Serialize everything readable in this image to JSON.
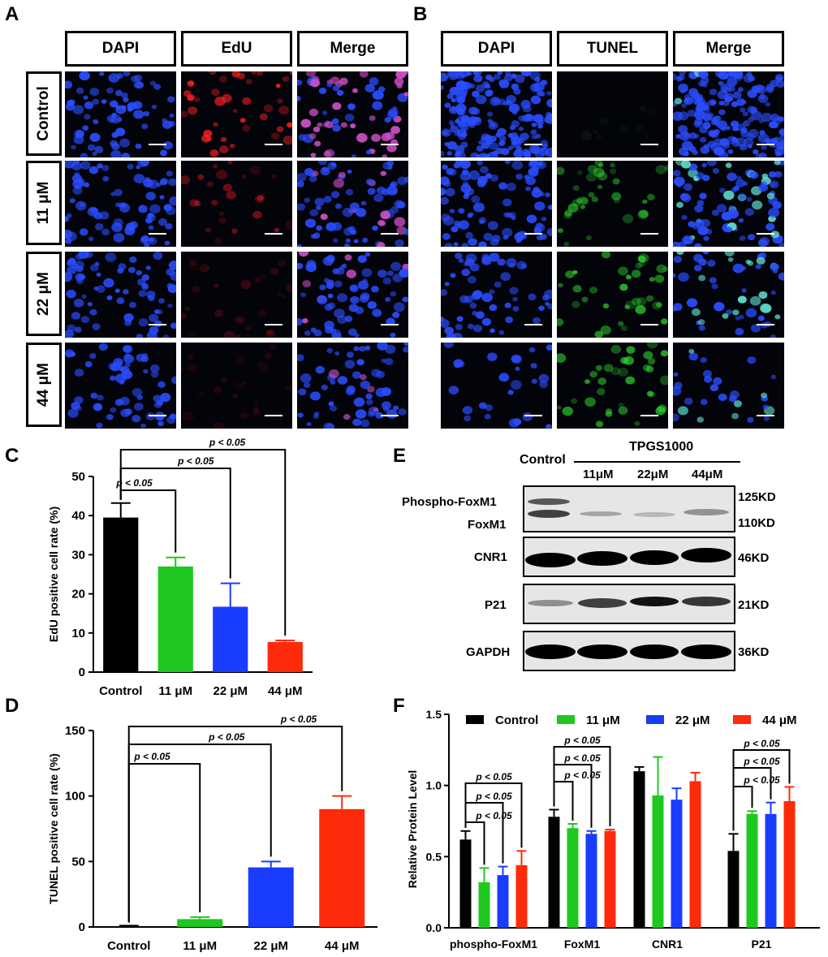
{
  "panels": {
    "A": "A",
    "B": "B",
    "C": "C",
    "D": "D",
    "E": "E",
    "F": "F"
  },
  "panel_a": {
    "columns": [
      "DAPI",
      "EdU",
      "Merge"
    ]
  },
  "panel_b": {
    "columns": [
      "DAPI",
      "TUNEL",
      "Merge"
    ]
  },
  "rows": [
    "Control",
    "11 μM",
    "22 μM",
    "44 μM"
  ],
  "colors": {
    "control": "#000000",
    "c11": "#1ec81e",
    "c22": "#1a3cff",
    "c44": "#ff2a0a",
    "dapi": "#2a4dff",
    "edu": "#ff2020",
    "tunel": "#30e030"
  },
  "blot": {
    "header_control": "Control",
    "header_group": "TPGS1000",
    "lanes": [
      "11μM",
      "22μM",
      "44μM"
    ],
    "rows": [
      {
        "labels": [
          "Phospho-FoxM1",
          "FoxM1"
        ],
        "sizes": [
          "125KD",
          "110KD"
        ]
      },
      {
        "labels": [
          "CNR1"
        ],
        "sizes": [
          "46KD"
        ]
      },
      {
        "labels": [
          "P21"
        ],
        "sizes": [
          "21KD"
        ]
      },
      {
        "labels": [
          "GAPDH"
        ],
        "sizes": [
          "36KD"
        ]
      }
    ]
  },
  "chart_data": [
    {
      "panel": "C",
      "type": "bar",
      "categories": [
        "Control",
        "11 μM",
        "22 μM",
        "44 μM"
      ],
      "values": [
        39.5,
        27,
        16.7,
        7.7
      ],
      "errors": [
        3.7,
        2.3,
        6,
        0.4
      ],
      "colors": [
        "#000000",
        "#1ec81e",
        "#1a3cff",
        "#ff2a0a"
      ],
      "ylabel": "EdU positive cell rate (%)",
      "ylim": [
        0,
        50
      ],
      "yticks": [
        0,
        10,
        20,
        30,
        40,
        50
      ],
      "annotations": [
        "p < 0.05",
        "p < 0.05",
        "p < 0.05"
      ]
    },
    {
      "panel": "D",
      "type": "bar",
      "categories": [
        "Control",
        "11 μM",
        "22 μM",
        "44 μM"
      ],
      "values": [
        0.5,
        6,
        45.5,
        90
      ],
      "errors": [
        0.5,
        1.5,
        4.5,
        10
      ],
      "colors": [
        "#000000",
        "#1ec81e",
        "#1a3cff",
        "#ff2a0a"
      ],
      "ylabel": "TUNEL positive cell rate (%)",
      "ylim": [
        0,
        150
      ],
      "yticks": [
        0,
        50,
        100,
        150
      ],
      "annotations": [
        "p < 0.05",
        "p < 0.05",
        "p < 0.05"
      ]
    },
    {
      "panel": "F",
      "type": "bar",
      "categories": [
        "phospho-FoxM1",
        "FoxM1",
        "CNR1",
        "P21"
      ],
      "series": [
        {
          "name": "Control",
          "color": "#000000",
          "values": [
            0.62,
            0.78,
            1.1,
            0.54
          ],
          "errors": [
            0.06,
            0.05,
            0.03,
            0.12
          ]
        },
        {
          "name": "11 μM",
          "color": "#1ec81e",
          "values": [
            0.32,
            0.7,
            0.93,
            0.8
          ],
          "errors": [
            0.1,
            0.03,
            0.27,
            0.02
          ]
        },
        {
          "name": "22 μM",
          "color": "#1a3cff",
          "values": [
            0.37,
            0.66,
            0.9,
            0.8
          ],
          "errors": [
            0.06,
            0.02,
            0.08,
            0.08
          ]
        },
        {
          "name": "44 μM",
          "color": "#ff2a0a",
          "values": [
            0.44,
            0.68,
            1.03,
            0.89
          ],
          "errors": [
            0.1,
            0.01,
            0.06,
            0.1
          ]
        }
      ],
      "ylabel": "Relative Protein Level",
      "ylim": [
        0,
        1.5
      ],
      "yticks": [
        "0.0",
        "0.5",
        "1.0",
        "1.5"
      ],
      "legend": "top",
      "annotations": [
        "p < 0.05",
        "p < 0.05",
        "p < 0.05",
        "p < 0.05",
        "p < 0.05",
        "p < 0.05",
        "p < 0.05",
        "p < 0.05",
        "p < 0.05"
      ]
    }
  ]
}
